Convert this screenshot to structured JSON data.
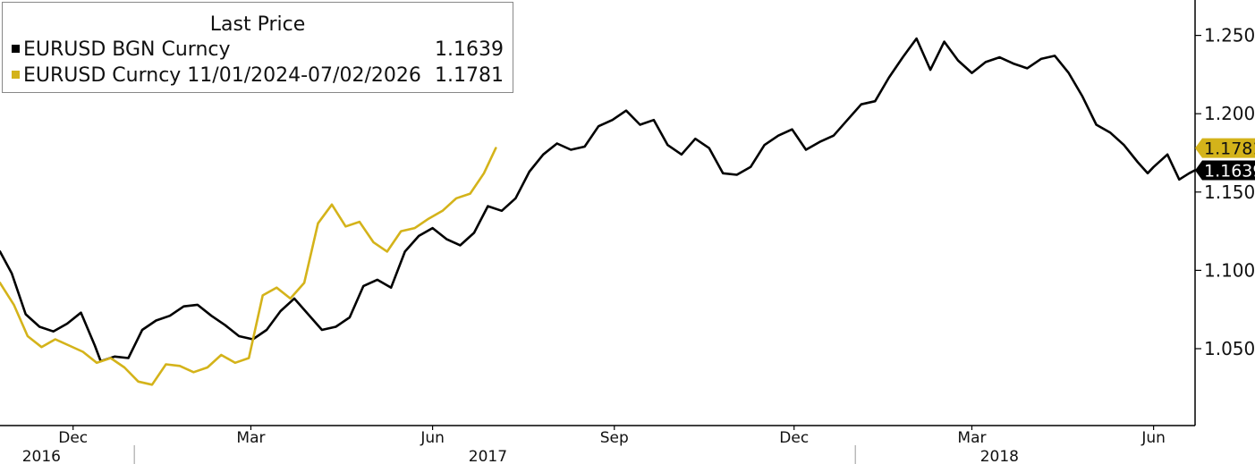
{
  "chart_data": {
    "type": "line",
    "legend_title": "Last Price",
    "legend_placement": "top-left",
    "y_axis_side": "right",
    "ylim": [
      1.0,
      1.26
    ],
    "yticks": [
      "1.0500",
      "1.1000",
      "1.1500",
      "1.2000",
      "1.2500"
    ],
    "yticks_values": [
      1.05,
      1.1,
      1.15,
      1.2,
      1.25
    ],
    "x_domain": [
      "2016-10-25",
      "2018-06-22"
    ],
    "month_ticks": [
      {
        "date": "2016-12-01",
        "label": "Dec"
      },
      {
        "date": "2017-03-01",
        "label": "Mar"
      },
      {
        "date": "2017-06-01",
        "label": "Jun"
      },
      {
        "date": "2017-09-01",
        "label": "Sep"
      },
      {
        "date": "2017-12-01",
        "label": "Dec"
      },
      {
        "date": "2018-03-01",
        "label": "Mar"
      },
      {
        "date": "2018-06-01",
        "label": "Jun"
      }
    ],
    "year_ticks": [
      {
        "date": "2016-11-15",
        "label": "2016"
      },
      {
        "date": "2017-06-29",
        "label": "2017"
      },
      {
        "date": "2018-03-15",
        "label": "2018"
      }
    ],
    "year_separators": [
      "2017-01-01",
      "2018-01-01"
    ],
    "grid": false,
    "series": [
      {
        "name": "EURUSD BGN Curncy",
        "last_value": "1.1639",
        "color": "#000000",
        "x": [
          "2016-10-25",
          "2016-10-31",
          "2016-11-07",
          "2016-11-14",
          "2016-11-21",
          "2016-11-28",
          "2016-12-05",
          "2016-12-12",
          "2016-12-15",
          "2016-12-22",
          "2016-12-29",
          "2017-01-05",
          "2017-01-12",
          "2017-01-19",
          "2017-01-26",
          "2017-02-02",
          "2017-02-09",
          "2017-02-16",
          "2017-02-23",
          "2017-03-02",
          "2017-03-09",
          "2017-03-16",
          "2017-03-23",
          "2017-03-30",
          "2017-04-06",
          "2017-04-13",
          "2017-04-20",
          "2017-04-27",
          "2017-05-04",
          "2017-05-11",
          "2017-05-18",
          "2017-05-25",
          "2017-06-01",
          "2017-06-08",
          "2017-06-15",
          "2017-06-22",
          "2017-06-29",
          "2017-07-06",
          "2017-07-13",
          "2017-07-20",
          "2017-07-27",
          "2017-08-03",
          "2017-08-10",
          "2017-08-17",
          "2017-08-24",
          "2017-08-31",
          "2017-09-07",
          "2017-09-14",
          "2017-09-21",
          "2017-09-28",
          "2017-10-05",
          "2017-10-12",
          "2017-10-19",
          "2017-10-26",
          "2017-11-02",
          "2017-11-09",
          "2017-11-16",
          "2017-11-23",
          "2017-11-30",
          "2017-12-07",
          "2017-12-14",
          "2017-12-21",
          "2017-12-28",
          "2018-01-04",
          "2018-01-11",
          "2018-01-18",
          "2018-01-25",
          "2018-02-01",
          "2018-02-08",
          "2018-02-15",
          "2018-02-22",
          "2018-03-01",
          "2018-03-08",
          "2018-03-15",
          "2018-03-22",
          "2018-03-29",
          "2018-04-05",
          "2018-04-12",
          "2018-04-19",
          "2018-04-26",
          "2018-05-03",
          "2018-05-10",
          "2018-05-17",
          "2018-05-24",
          "2018-05-29",
          "2018-06-01",
          "2018-06-08",
          "2018-06-14",
          "2018-06-19",
          "2018-06-22"
        ],
        "y": [
          1.112,
          1.098,
          1.072,
          1.064,
          1.061,
          1.066,
          1.073,
          1.052,
          1.042,
          1.045,
          1.044,
          1.062,
          1.068,
          1.071,
          1.077,
          1.078,
          1.071,
          1.065,
          1.058,
          1.056,
          1.062,
          1.074,
          1.082,
          1.072,
          1.062,
          1.064,
          1.07,
          1.09,
          1.094,
          1.089,
          1.112,
          1.122,
          1.127,
          1.12,
          1.116,
          1.124,
          1.141,
          1.138,
          1.146,
          1.163,
          1.174,
          1.181,
          1.177,
          1.179,
          1.192,
          1.196,
          1.202,
          1.193,
          1.196,
          1.18,
          1.174,
          1.184,
          1.178,
          1.162,
          1.161,
          1.166,
          1.18,
          1.186,
          1.19,
          1.177,
          1.182,
          1.186,
          1.196,
          1.206,
          1.208,
          1.223,
          1.236,
          1.248,
          1.228,
          1.246,
          1.234,
          1.226,
          1.233,
          1.236,
          1.232,
          1.229,
          1.235,
          1.237,
          1.226,
          1.211,
          1.193,
          1.188,
          1.18,
          1.169,
          1.162,
          1.166,
          1.174,
          1.158,
          1.162,
          1.1639
        ]
      },
      {
        "name": "EURUSD Curncy 11/01/2024-07/02/2026",
        "last_value": "1.1781",
        "color": "#d4b31a",
        "x": [
          "2016-10-25",
          "2016-11-01",
          "2016-11-08",
          "2016-11-15",
          "2016-11-22",
          "2016-11-29",
          "2016-12-06",
          "2016-12-13",
          "2016-12-20",
          "2016-12-27",
          "2017-01-03",
          "2017-01-10",
          "2017-01-17",
          "2017-01-24",
          "2017-01-31",
          "2017-02-07",
          "2017-02-14",
          "2017-02-21",
          "2017-02-28",
          "2017-03-07",
          "2017-03-14",
          "2017-03-21",
          "2017-03-28",
          "2017-04-04",
          "2017-04-11",
          "2017-04-18",
          "2017-04-25",
          "2017-05-02",
          "2017-05-09",
          "2017-05-16",
          "2017-05-23",
          "2017-05-30",
          "2017-06-06",
          "2017-06-13",
          "2017-06-20",
          "2017-06-27",
          "2017-07-03"
        ],
        "y": [
          1.092,
          1.078,
          1.058,
          1.051,
          1.056,
          1.052,
          1.048,
          1.041,
          1.044,
          1.038,
          1.029,
          1.027,
          1.04,
          1.039,
          1.035,
          1.038,
          1.046,
          1.041,
          1.044,
          1.084,
          1.089,
          1.082,
          1.092,
          1.13,
          1.142,
          1.128,
          1.131,
          1.118,
          1.112,
          1.125,
          1.127,
          1.133,
          1.138,
          1.146,
          1.149,
          1.162,
          1.1781
        ]
      }
    ]
  }
}
